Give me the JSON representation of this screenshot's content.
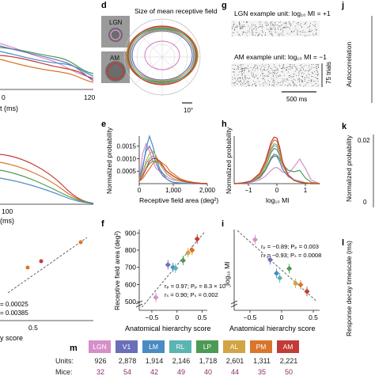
{
  "colors": {
    "areas": [
      "#d68fc8",
      "#6b6fb8",
      "#4a8bc4",
      "#5ab4b0",
      "#4d9a55",
      "#d2a443",
      "#d9762a",
      "#c23b36"
    ],
    "dash": "#555555",
    "ink": "#222222"
  },
  "areas": [
    "LGN",
    "V1",
    "LM",
    "RL",
    "LP",
    "AL",
    "PM",
    "AM"
  ],
  "panel_letters": {
    "d": "d",
    "g": "g",
    "j": "j",
    "e": "e",
    "h": "h",
    "k": "k",
    "f": "f",
    "i": "i",
    "l": "l",
    "m": "m"
  },
  "panel_d": {
    "title": "Size of mean receptive field",
    "lgn_label": "LGN",
    "am_label": "AM",
    "scale_label": "10°"
  },
  "panel_g": {
    "lgn_title": "LGN example unit: log₁₀ MI = +1",
    "am_title": "AM example unit: log₁₀ MI = −1",
    "trials_label": "75 trials",
    "time_label": "500 ms"
  },
  "left_fragments": {
    "top_axis_ticks": [
      "0",
      "120"
    ],
    "top_axis_label_frag": "t (ms)",
    "mid_label_frag": "(ms)",
    "mid_tick": "100",
    "stat_1": "= 0.00025",
    "stat_2": "= 0.00385",
    "score_frag": "y score",
    "tick_05": "0.5"
  },
  "right_fragments": {
    "autocorr_label": "Autocorrelation",
    "tick_002": "0.02",
    "tick_0": "0",
    "decay_label": "Response decay timescale (ms)"
  },
  "chart_data": [
    {
      "id": "e",
      "type": "line",
      "xlabel": "Receptive field area (deg²)",
      "ylabel": "Normalized probability",
      "xlim": [
        0,
        2000
      ],
      "ylim": [
        0,
        0.0019
      ],
      "xticks": [
        "0",
        "1,000",
        "2,000"
      ],
      "yticks": [
        "0.0005",
        "0.0010",
        "0.0015"
      ],
      "x": [
        0,
        100,
        200,
        300,
        400,
        500,
        600,
        700,
        800,
        900,
        1000,
        1200,
        1400,
        1600,
        1800,
        2000
      ],
      "series": [
        {
          "values": [
            0.0001,
            0.0012,
            0.0016,
            0.0013,
            0.0009,
            0.0006,
            0.0005,
            0.0004,
            0.0003,
            0.0002,
            0.00015,
            0.0001,
            5e-05,
            3e-05,
            1e-05,
            0.0
          ]
        },
        {
          "values": [
            0.0001,
            0.0007,
            0.0013,
            0.0015,
            0.0012,
            0.0008,
            0.0005,
            0.0003,
            0.0002,
            0.0001,
            5e-05,
            3e-05,
            1e-05,
            0.0,
            0.0,
            0.0
          ]
        },
        {
          "values": [
            0.0001,
            0.0006,
            0.0014,
            0.0019,
            0.0015,
            0.001,
            0.0006,
            0.0004,
            0.0002,
            0.0001,
            5e-05,
            2e-05,
            0.0,
            0.0,
            0.0,
            0.0
          ]
        },
        {
          "values": [
            0.0001,
            0.0004,
            0.0008,
            0.001,
            0.0011,
            0.001,
            0.0008,
            0.0006,
            0.0004,
            0.0003,
            0.0002,
            0.0001,
            5e-05,
            2e-05,
            0.0,
            0.0
          ]
        },
        {
          "values": [
            0.0001,
            0.0003,
            0.0006,
            0.0008,
            0.0009,
            0.0009,
            0.0008,
            0.0007,
            0.0005,
            0.0004,
            0.0003,
            0.00015,
            8e-05,
            3e-05,
            1e-05,
            0.0
          ]
        },
        {
          "values": [
            0.0001,
            0.0004,
            0.0009,
            0.0012,
            0.0013,
            0.0011,
            0.0008,
            0.0006,
            0.0004,
            0.0003,
            0.0002,
            0.0001,
            5e-05,
            2e-05,
            0.0,
            0.0
          ]
        },
        {
          "values": [
            0.0001,
            0.0002,
            0.0004,
            0.0006,
            0.0008,
            0.0009,
            0.0009,
            0.0008,
            0.0007,
            0.0005,
            0.0004,
            0.0002,
            0.0001,
            5e-05,
            2e-05,
            0.0
          ]
        },
        {
          "values": [
            0.0001,
            0.0003,
            0.0006,
            0.0009,
            0.001,
            0.001,
            0.0009,
            0.0007,
            0.0005,
            0.0004,
            0.0003,
            0.00015,
            7e-05,
            3e-05,
            1e-05,
            0.0
          ]
        }
      ]
    },
    {
      "id": "h",
      "type": "line",
      "xlabel": "log₁₀ MI",
      "ylabel": "Normalized probability",
      "xlim": [
        -1.5,
        1.5
      ],
      "ylim": [
        0,
        1.0
      ],
      "xticks": [
        "−1",
        "0",
        "1"
      ],
      "x": [
        -1.5,
        -1.2,
        -0.9,
        -0.6,
        -0.4,
        -0.2,
        -0.1,
        0.0,
        0.1,
        0.2,
        0.4,
        0.6,
        0.8,
        1.0,
        1.2,
        1.5
      ],
      "series": [
        {
          "values": [
            0.0,
            0.01,
            0.03,
            0.08,
            0.16,
            0.28,
            0.33,
            0.34,
            0.3,
            0.24,
            0.22,
            0.35,
            0.52,
            0.32,
            0.08,
            0.0
          ]
        },
        {
          "values": [
            0.0,
            0.01,
            0.04,
            0.12,
            0.28,
            0.52,
            0.58,
            0.57,
            0.46,
            0.3,
            0.15,
            0.08,
            0.05,
            0.02,
            0.01,
            0.0
          ]
        },
        {
          "values": [
            0.0,
            0.01,
            0.05,
            0.16,
            0.36,
            0.66,
            0.74,
            0.72,
            0.58,
            0.38,
            0.18,
            0.08,
            0.04,
            0.02,
            0.01,
            0.0
          ]
        },
        {
          "values": [
            0.0,
            0.01,
            0.05,
            0.18,
            0.4,
            0.74,
            0.84,
            0.82,
            0.66,
            0.42,
            0.18,
            0.08,
            0.04,
            0.02,
            0.01,
            0.0
          ]
        },
        {
          "values": [
            0.0,
            0.02,
            0.05,
            0.14,
            0.3,
            0.55,
            0.62,
            0.6,
            0.52,
            0.4,
            0.28,
            0.25,
            0.28,
            0.12,
            0.03,
            0.0
          ]
        },
        {
          "values": [
            0.0,
            0.01,
            0.05,
            0.17,
            0.38,
            0.7,
            0.8,
            0.78,
            0.62,
            0.4,
            0.17,
            0.07,
            0.04,
            0.02,
            0.01,
            0.0
          ]
        },
        {
          "values": [
            0.0,
            0.01,
            0.06,
            0.2,
            0.44,
            0.82,
            0.92,
            0.9,
            0.72,
            0.44,
            0.18,
            0.07,
            0.03,
            0.01,
            0.0,
            0.0
          ]
        },
        {
          "values": [
            0.0,
            0.01,
            0.06,
            0.22,
            0.48,
            0.88,
            0.98,
            0.96,
            0.76,
            0.46,
            0.18,
            0.07,
            0.03,
            0.01,
            0.0,
            0.0
          ]
        }
      ]
    },
    {
      "id": "f",
      "type": "scatter",
      "xlabel": "Anatomical hierarchy score",
      "ylabel": "Receptive field area (deg²)",
      "xlim": [
        -0.75,
        0.6
      ],
      "ylim": [
        450,
        920
      ],
      "xticks": [
        "−0.5",
        "0",
        "0.5"
      ],
      "yticks": [
        "500",
        "600",
        "700",
        "800",
        "900"
      ],
      "x": [
        -0.42,
        -0.18,
        -0.08,
        -0.03,
        0.12,
        0.22,
        0.3,
        0.4
      ],
      "y": [
        525,
        715,
        700,
        695,
        740,
        785,
        800,
        865
      ],
      "stats": [
        "rₚ = 0.97; Pₚ = 8.3 × 10⁻⁵",
        "rₛ = 0.90; Pₛ = 0.002"
      ]
    },
    {
      "id": "i",
      "type": "scatter",
      "xlabel": "Anatomical hierarchy score",
      "ylabel": "log₁₀ MI",
      "xlim": [
        -0.75,
        0.6
      ],
      "ylim": [
        -0.6,
        0.6
      ],
      "x": [
        -0.42,
        -0.18,
        -0.08,
        -0.03,
        0.12,
        0.22,
        0.3,
        0.4
      ],
      "y": [
        0.45,
        0.15,
        -0.05,
        -0.12,
        0.02,
        -0.2,
        -0.22,
        -0.32
      ],
      "stats": [
        "rₚ = −0.89; Pₚ = 0.003",
        "rₛ = −0.93; Pₛ = 0.0008"
      ]
    }
  ],
  "panel_m": {
    "units_label": "Units:",
    "mice_label": "Mice:",
    "units": [
      "926",
      "2,878",
      "1,914",
      "2,146",
      "1,718",
      "2,601",
      "1,311",
      "2,221"
    ],
    "mice": [
      "32",
      "54",
      "42",
      "49",
      "40",
      "44",
      "35",
      "50"
    ]
  }
}
